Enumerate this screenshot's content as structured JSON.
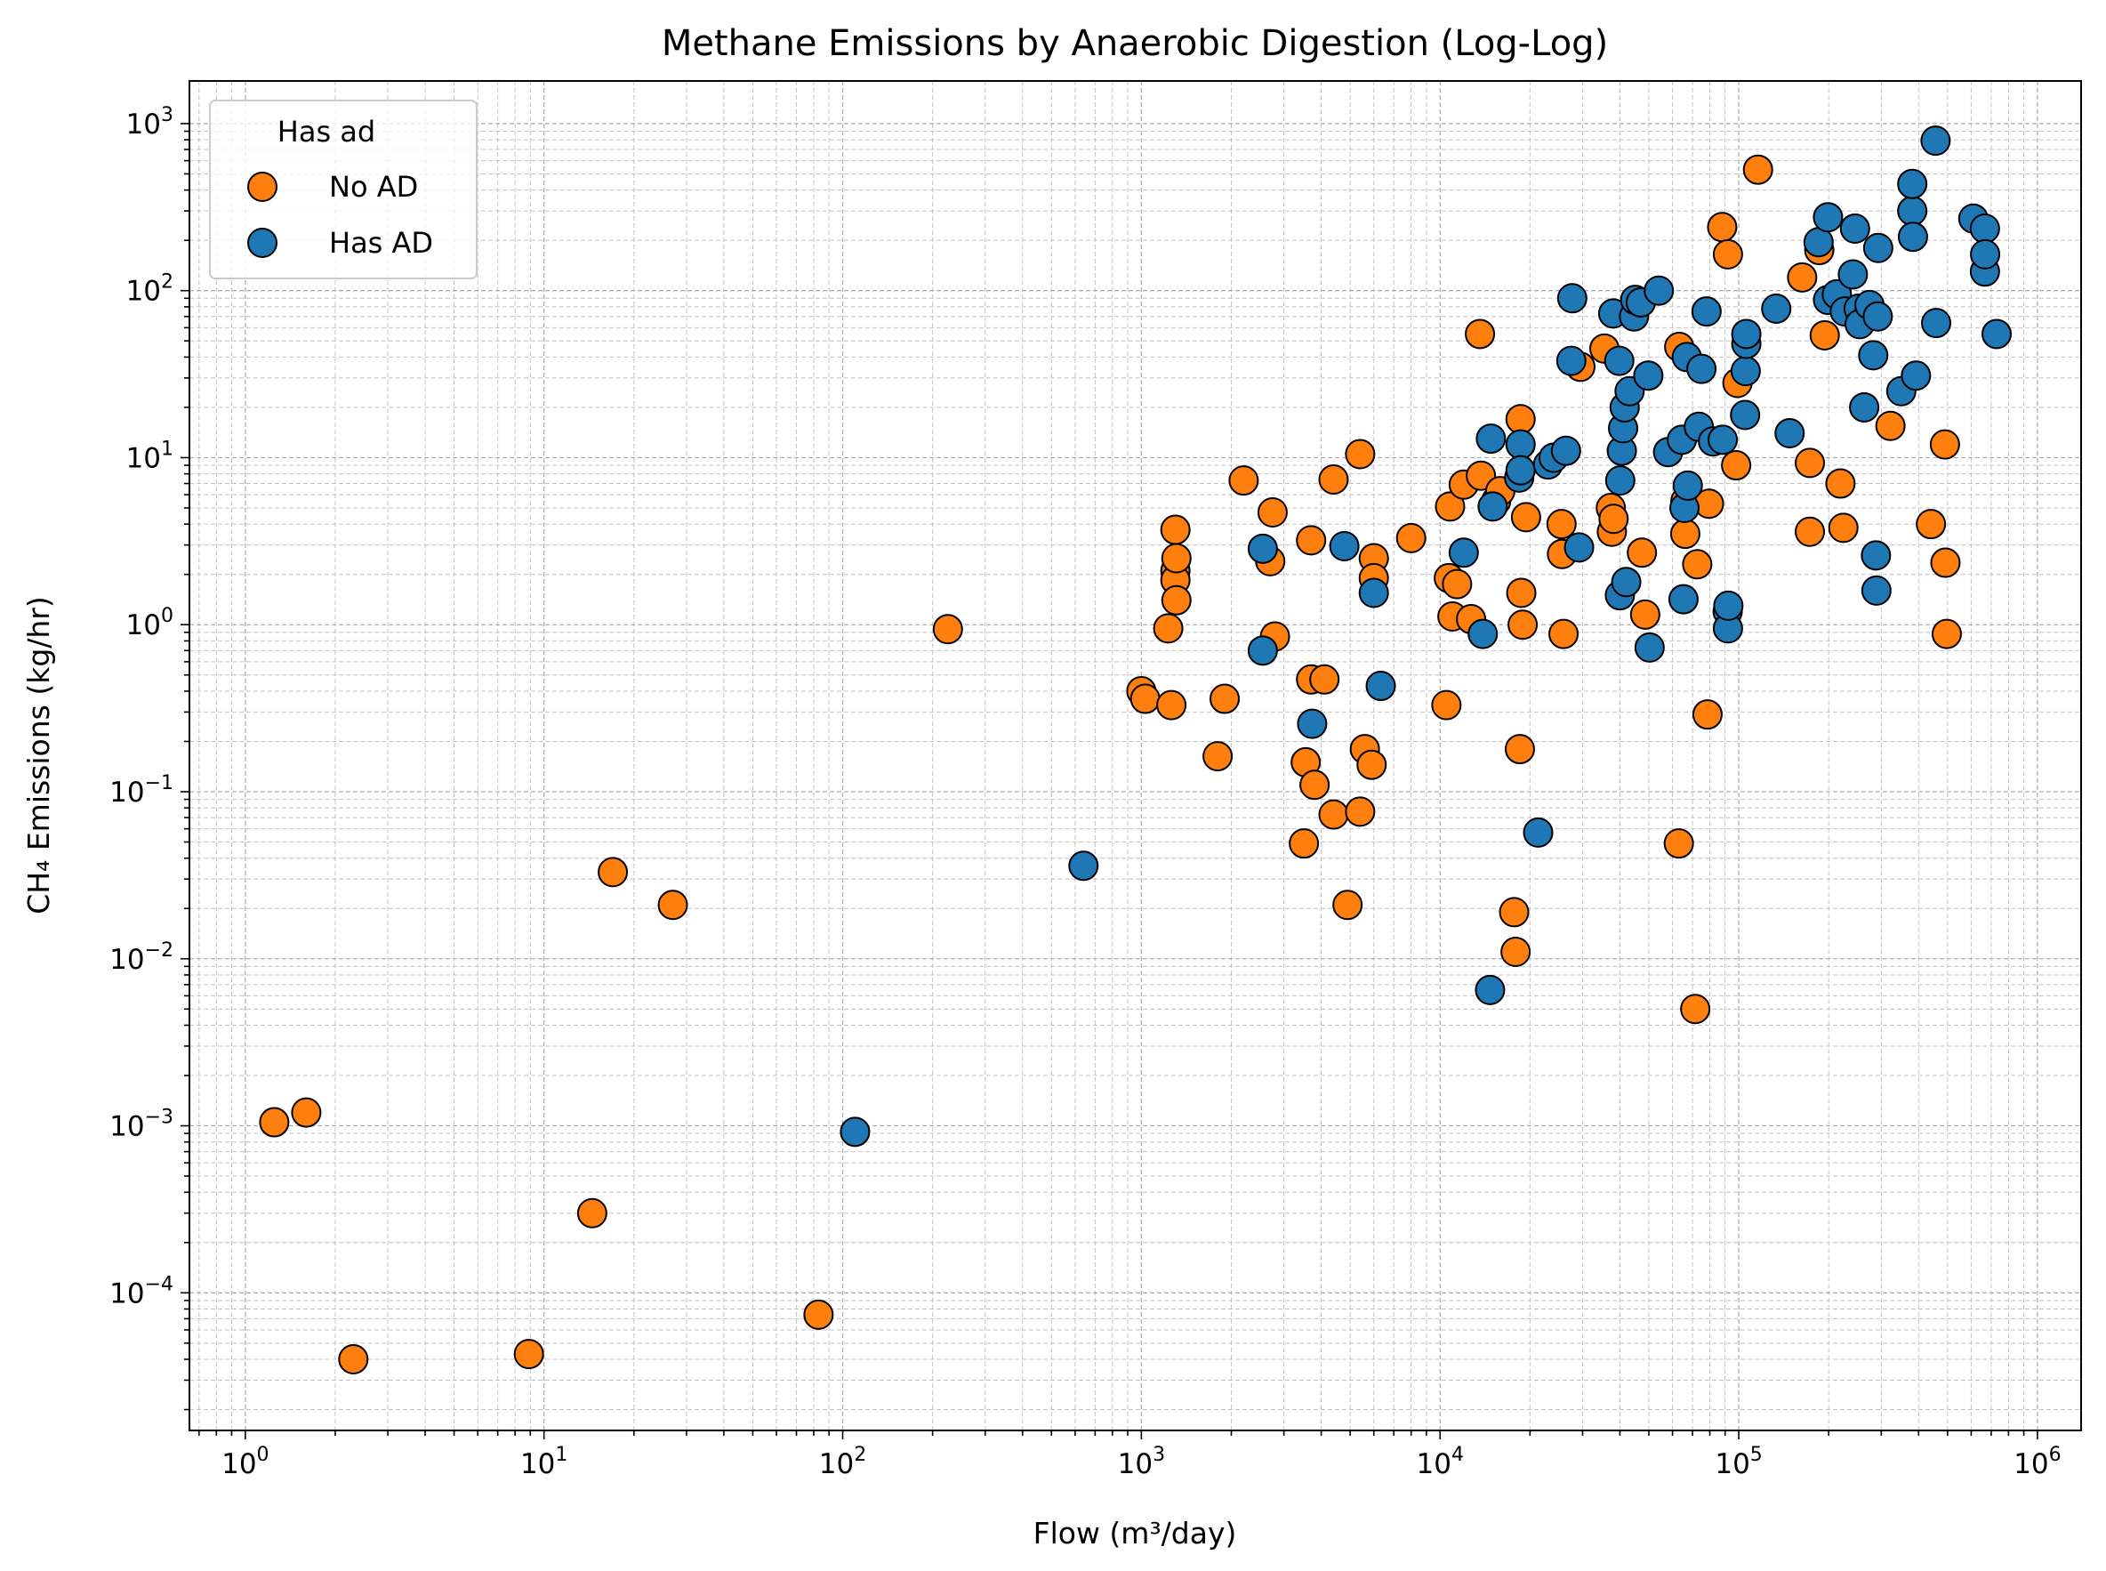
{
  "chart_data": {
    "type": "scatter",
    "title": "Methane Emissions by Anaerobic Digestion (Log-Log)",
    "xlabel": "Flow (m³/day)",
    "ylabel": "CH₄ Emissions (kg/hr)",
    "xscale": "log",
    "yscale": "log",
    "xlim": [
      0.65,
      1400000
    ],
    "ylim": [
      1.5e-05,
      1800
    ],
    "grid": "major and minor, dashed",
    "x_ticks": [
      1,
      10,
      100,
      1000,
      10000,
      100000,
      1000000
    ],
    "x_tick_labels": [
      {
        "base": "10",
        "exp": "0"
      },
      {
        "base": "10",
        "exp": "1"
      },
      {
        "base": "10",
        "exp": "2"
      },
      {
        "base": "10",
        "exp": "3"
      },
      {
        "base": "10",
        "exp": "4"
      },
      {
        "base": "10",
        "exp": "5"
      },
      {
        "base": "10",
        "exp": "6"
      }
    ],
    "y_ticks": [
      0.0001,
      0.001,
      0.01,
      0.1,
      1,
      10,
      100,
      1000
    ],
    "y_tick_labels": [
      {
        "base": "10",
        "exp": "−4"
      },
      {
        "base": "10",
        "exp": "−3"
      },
      {
        "base": "10",
        "exp": "−2"
      },
      {
        "base": "10",
        "exp": "−1"
      },
      {
        "base": "10",
        "exp": "0"
      },
      {
        "base": "10",
        "exp": "1"
      },
      {
        "base": "10",
        "exp": "2"
      },
      {
        "base": "10",
        "exp": "3"
      }
    ],
    "legend": {
      "title": "Has ad",
      "placement": "upper-left",
      "entries": [
        "No AD",
        "Has AD"
      ]
    },
    "series": [
      {
        "name": "No AD",
        "color": "#ff7f0e",
        "points": [
          [
            1.25,
            0.00105
          ],
          [
            1.6,
            0.0012
          ],
          [
            2.3,
            4e-05
          ],
          [
            8.9,
            4.3e-05
          ],
          [
            14.5,
            0.0003
          ],
          [
            17,
            0.033
          ],
          [
            27,
            0.021
          ],
          [
            83,
            7.4e-05
          ],
          [
            225,
            0.94
          ],
          [
            1000,
            0.4
          ],
          [
            1030,
            0.36
          ],
          [
            1230,
            0.95
          ],
          [
            1260,
            0.33
          ],
          [
            1300,
            2.1
          ],
          [
            1300,
            1.85
          ],
          [
            1310,
            1.4
          ],
          [
            1310,
            2.5
          ],
          [
            1300,
            3.7
          ],
          [
            1800,
            0.163
          ],
          [
            1900,
            0.36
          ],
          [
            2200,
            7.3
          ],
          [
            2750,
            4.7
          ],
          [
            2700,
            2.4
          ],
          [
            2800,
            0.85
          ],
          [
            3500,
            0.049
          ],
          [
            3550,
            0.15
          ],
          [
            3700,
            3.2
          ],
          [
            3700,
            0.47
          ],
          [
            3800,
            0.11
          ],
          [
            4100,
            0.47
          ],
          [
            4400,
            7.4
          ],
          [
            4400,
            0.073
          ],
          [
            4900,
            0.021
          ],
          [
            5400,
            10.5
          ],
          [
            5400,
            0.076
          ],
          [
            5600,
            0.18
          ],
          [
            5900,
            0.145
          ],
          [
            6000,
            2.5
          ],
          [
            6000,
            1.9
          ],
          [
            8000,
            3.3
          ],
          [
            10500,
            0.33
          ],
          [
            10700,
            1.9
          ],
          [
            10800,
            5.1
          ],
          [
            11000,
            1.12
          ],
          [
            11400,
            1.75
          ],
          [
            12000,
            6.9
          ],
          [
            12700,
            1.08
          ],
          [
            13600,
            55
          ],
          [
            13700,
            7.8
          ],
          [
            15400,
            5.5
          ],
          [
            15900,
            6.3
          ],
          [
            17700,
            0.019
          ],
          [
            17900,
            0.011
          ],
          [
            18500,
            0.18
          ],
          [
            18600,
            17
          ],
          [
            18700,
            1.55
          ],
          [
            18900,
            1.0
          ],
          [
            19400,
            4.4
          ],
          [
            25500,
            4.0
          ],
          [
            25600,
            2.65
          ],
          [
            25900,
            0.88
          ],
          [
            29500,
            35
          ],
          [
            35500,
            45
          ],
          [
            37300,
            5.0
          ],
          [
            37600,
            3.6
          ],
          [
            38100,
            4.3
          ],
          [
            47400,
            2.7
          ],
          [
            48600,
            1.15
          ],
          [
            63000,
            0.049
          ],
          [
            63200,
            46
          ],
          [
            66200,
            3.5
          ],
          [
            66300,
            5.5
          ],
          [
            71500,
            0.005
          ],
          [
            72600,
            2.3
          ],
          [
            78600,
            0.29
          ],
          [
            79500,
            5.3
          ],
          [
            88000,
            240
          ],
          [
            92000,
            165
          ],
          [
            98000,
            9.0
          ],
          [
            99000,
            28
          ],
          [
            116000,
            530
          ],
          [
            163000,
            120
          ],
          [
            173000,
            9.3
          ],
          [
            173000,
            3.6
          ],
          [
            186000,
            175
          ],
          [
            194000,
            54
          ],
          [
            219000,
            7.0
          ],
          [
            224000,
            3.8
          ],
          [
            322000,
            15.5
          ],
          [
            440000,
            4.0
          ],
          [
            490000,
            12
          ],
          [
            492000,
            2.35
          ],
          [
            497000,
            0.88
          ]
        ]
      },
      {
        "name": "Has AD",
        "color": "#1f77b4",
        "points": [
          [
            110,
            0.00092
          ],
          [
            640,
            0.036
          ],
          [
            2550,
            2.85
          ],
          [
            2550,
            0.7
          ],
          [
            3730,
            0.255
          ],
          [
            4780,
            2.95
          ],
          [
            6000,
            1.55
          ],
          [
            6330,
            0.43
          ],
          [
            12000,
            2.7
          ],
          [
            13900,
            0.88
          ],
          [
            14700,
            0.0065
          ],
          [
            14800,
            13
          ],
          [
            15000,
            5.1
          ],
          [
            18400,
            7.6
          ],
          [
            18600,
            12
          ],
          [
            18600,
            8.4
          ],
          [
            21300,
            0.057
          ],
          [
            23000,
            9.1
          ],
          [
            24000,
            10
          ],
          [
            26400,
            11
          ],
          [
            27700,
            90
          ],
          [
            27500,
            38
          ],
          [
            29200,
            2.9
          ],
          [
            38000,
            73
          ],
          [
            39800,
            38
          ],
          [
            40000,
            1.5
          ],
          [
            40100,
            7.3
          ],
          [
            40600,
            11
          ],
          [
            41000,
            15
          ],
          [
            41500,
            20
          ],
          [
            42000,
            1.8
          ],
          [
            43100,
            25
          ],
          [
            44600,
            70
          ],
          [
            45000,
            88
          ],
          [
            47000,
            85
          ],
          [
            49800,
            31
          ],
          [
            50300,
            0.73
          ],
          [
            54000,
            100
          ],
          [
            58000,
            10.8
          ],
          [
            64500,
            12.8
          ],
          [
            65300,
            1.42
          ],
          [
            65800,
            5.0
          ],
          [
            67000,
            40
          ],
          [
            67500,
            6.8
          ],
          [
            73500,
            15.3
          ],
          [
            75000,
            34
          ],
          [
            78000,
            75
          ],
          [
            82000,
            12.5
          ],
          [
            88400,
            12.8
          ],
          [
            91800,
            1.2
          ],
          [
            92000,
            0.95
          ],
          [
            92300,
            1.3
          ],
          [
            105000,
            18
          ],
          [
            105500,
            33
          ],
          [
            106000,
            48
          ],
          [
            106000,
            55
          ],
          [
            133500,
            78
          ],
          [
            148000,
            14
          ],
          [
            185000,
            195
          ],
          [
            199000,
            275
          ],
          [
            199000,
            88
          ],
          [
            213000,
            95
          ],
          [
            226500,
            75
          ],
          [
            241000,
            125
          ],
          [
            245000,
            235
          ],
          [
            252000,
            78
          ],
          [
            254000,
            63
          ],
          [
            263000,
            20
          ],
          [
            274000,
            82
          ],
          [
            282000,
            41
          ],
          [
            288000,
            2.6
          ],
          [
            289000,
            1.6
          ],
          [
            292000,
            70
          ],
          [
            293000,
            180
          ],
          [
            350000,
            25
          ],
          [
            381000,
            300
          ],
          [
            381000,
            435
          ],
          [
            383000,
            210
          ],
          [
            392000,
            31
          ],
          [
            456000,
            790
          ],
          [
            458000,
            64
          ],
          [
            610000,
            270
          ],
          [
            667000,
            235
          ],
          [
            667000,
            130
          ],
          [
            668000,
            165
          ],
          [
            730000,
            55
          ]
        ]
      }
    ]
  }
}
